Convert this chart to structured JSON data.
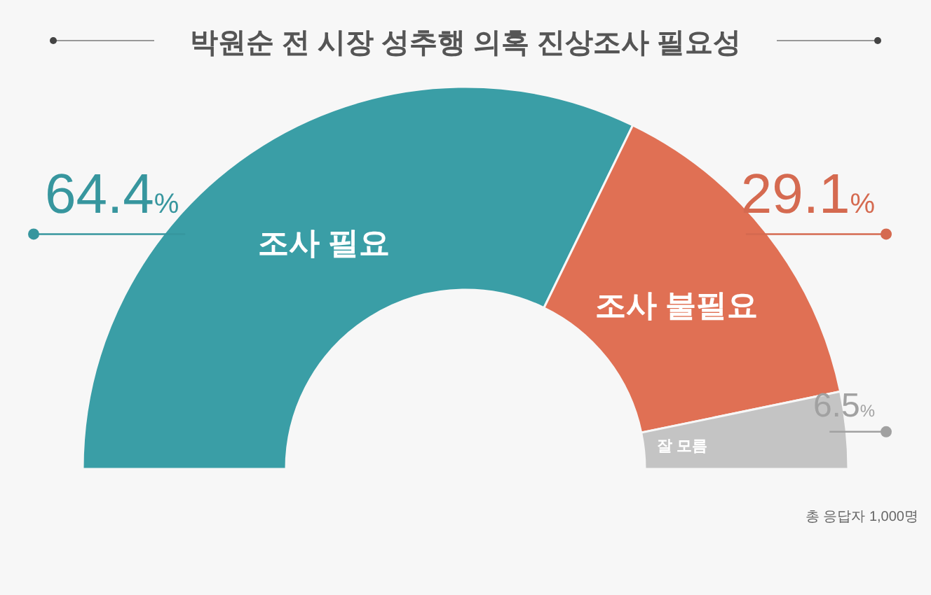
{
  "chart_data": {
    "type": "donut",
    "title": "박원순 전 시장 성추행 의혹 진상조사 필요성",
    "categories": [
      "조사 필요",
      "조사 불필요",
      "잘 모름"
    ],
    "values": [
      64.4,
      29.1,
      6.5
    ],
    "colors": [
      "#3a9ea6",
      "#e07054",
      "#c4c4c4"
    ],
    "value_labels": [
      "64.4%",
      "29.1%",
      "6.5%"
    ],
    "legend": false,
    "annotations": [
      "총 응답자 1,000명"
    ]
  }
}
